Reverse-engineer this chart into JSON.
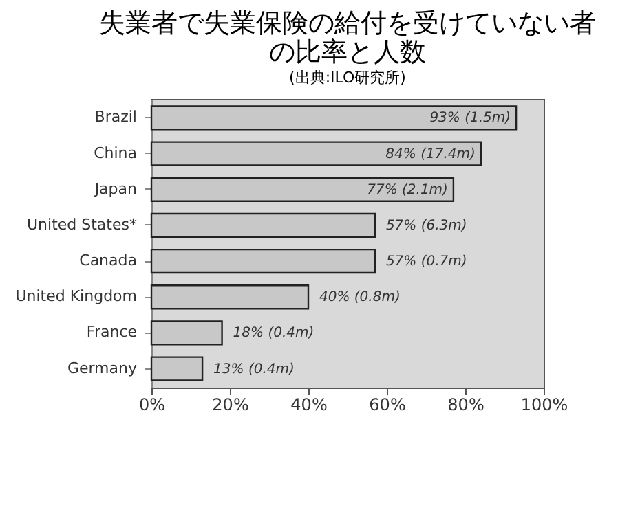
{
  "chart_data": {
    "type": "bar",
    "orientation": "horizontal",
    "title": "失業者で失業保険の給付を受けていない者の比率と人数",
    "subtitle": "(出典:ILO研究所)",
    "categories": [
      "Brazil",
      "China",
      "Japan",
      "United States*",
      "Canada",
      "United Kingdom",
      "France",
      "Germany"
    ],
    "values": [
      93,
      84,
      77,
      57,
      57,
      40,
      18,
      13
    ],
    "value_labels": [
      "93% (1.5m)",
      "84% (17.4m)",
      "77% (2.1m)",
      "57% (6.3m)",
      "57% (0.7m)",
      "40% (0.8m)",
      "18% (0.4m)",
      "13% (0.4m)"
    ],
    "color": "#c8c8c8",
    "xlim": [
      0,
      100
    ],
    "xticks": [
      {
        "value": 0,
        "label": "0%"
      },
      {
        "value": 20,
        "label": "20%"
      },
      {
        "value": 40,
        "label": "40%"
      },
      {
        "value": 60,
        "label": "60%"
      },
      {
        "value": 80,
        "label": "80%"
      },
      {
        "value": 100,
        "label": "100%"
      }
    ],
    "grid": false
  }
}
